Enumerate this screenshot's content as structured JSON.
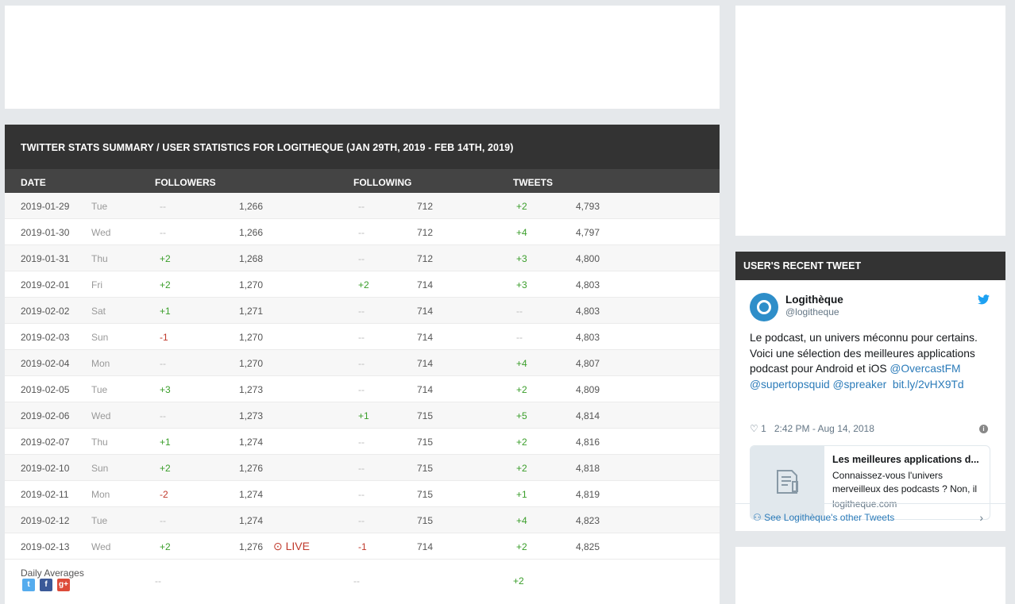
{
  "summary": {
    "title": "TWITTER STATS SUMMARY / USER STATISTICS FOR LOGITHEQUE (JAN 29TH, 2019 - FEB 14TH, 2019)",
    "columns": {
      "date": "DATE",
      "followers": "FOLLOWERS",
      "following": "FOLLOWING",
      "tweets": "TWEETS"
    },
    "rows": [
      {
        "date": "2019-01-29",
        "day": "Tue",
        "followers_change": "--",
        "followers": "1,266",
        "following_change": "--",
        "following": "712",
        "tweets_change": "+2",
        "tweets": "4,793"
      },
      {
        "date": "2019-01-30",
        "day": "Wed",
        "followers_change": "--",
        "followers": "1,266",
        "following_change": "--",
        "following": "712",
        "tweets_change": "+4",
        "tweets": "4,797"
      },
      {
        "date": "2019-01-31",
        "day": "Thu",
        "followers_change": "+2",
        "followers": "1,268",
        "following_change": "--",
        "following": "712",
        "tweets_change": "+3",
        "tweets": "4,800"
      },
      {
        "date": "2019-02-01",
        "day": "Fri",
        "followers_change": "+2",
        "followers": "1,270",
        "following_change": "+2",
        "following": "714",
        "tweets_change": "+3",
        "tweets": "4,803"
      },
      {
        "date": "2019-02-02",
        "day": "Sat",
        "followers_change": "+1",
        "followers": "1,271",
        "following_change": "--",
        "following": "714",
        "tweets_change": "--",
        "tweets": "4,803"
      },
      {
        "date": "2019-02-03",
        "day": "Sun",
        "followers_change": "-1",
        "followers": "1,270",
        "following_change": "--",
        "following": "714",
        "tweets_change": "--",
        "tweets": "4,803"
      },
      {
        "date": "2019-02-04",
        "day": "Mon",
        "followers_change": "--",
        "followers": "1,270",
        "following_change": "--",
        "following": "714",
        "tweets_change": "+4",
        "tweets": "4,807"
      },
      {
        "date": "2019-02-05",
        "day": "Tue",
        "followers_change": "+3",
        "followers": "1,273",
        "following_change": "--",
        "following": "714",
        "tweets_change": "+2",
        "tweets": "4,809"
      },
      {
        "date": "2019-02-06",
        "day": "Wed",
        "followers_change": "--",
        "followers": "1,273",
        "following_change": "+1",
        "following": "715",
        "tweets_change": "+5",
        "tweets": "4,814"
      },
      {
        "date": "2019-02-07",
        "day": "Thu",
        "followers_change": "+1",
        "followers": "1,274",
        "following_change": "--",
        "following": "715",
        "tweets_change": "+2",
        "tweets": "4,816"
      },
      {
        "date": "2019-02-10",
        "day": "Sun",
        "followers_change": "+2",
        "followers": "1,276",
        "following_change": "--",
        "following": "715",
        "tweets_change": "+2",
        "tweets": "4,818"
      },
      {
        "date": "2019-02-11",
        "day": "Mon",
        "followers_change": "-2",
        "followers": "1,274",
        "following_change": "--",
        "following": "715",
        "tweets_change": "+1",
        "tweets": "4,819"
      },
      {
        "date": "2019-02-12",
        "day": "Tue",
        "followers_change": "--",
        "followers": "1,274",
        "following_change": "--",
        "following": "715",
        "tweets_change": "+4",
        "tweets": "4,823"
      },
      {
        "date": "2019-02-13",
        "day": "Wed",
        "followers_change": "+2",
        "followers": "1,276",
        "live": "LIVE",
        "following_change": "-1",
        "following": "714",
        "tweets_change": "+2",
        "tweets": "4,825"
      }
    ],
    "averages": {
      "label": "Daily Averages",
      "followers": "--",
      "following": "--",
      "tweets": "+2"
    },
    "share_icons": [
      "twitter-icon",
      "facebook-icon",
      "google-plus-icon"
    ]
  },
  "recent_tweet": {
    "heading": "USER'S RECENT TWEET",
    "name": "Logithèque",
    "handle": "@logitheque",
    "text": "Le podcast, un univers méconnu pour certains. Voici une sélection des meilleures applications podcast pour Android et iOS ",
    "mentions": [
      "@OvercastFM",
      "@supertopsquid",
      "@spreaker"
    ],
    "link": "bit.ly/2vHX9Td",
    "likes": "1",
    "time": "2:42 PM - Aug 14, 2018",
    "card": {
      "title": "Les meilleures applications d...",
      "description": "Connaissez-vous l'univers merveilleux des podcasts ? Non, il",
      "domain": "logitheque.com"
    },
    "footer_link": "See Logithèque's other Tweets"
  },
  "colors": {
    "positive": "#3a9e2a",
    "negative": "#c0392b",
    "header": "#333333",
    "twitter": "#1da1f2"
  }
}
